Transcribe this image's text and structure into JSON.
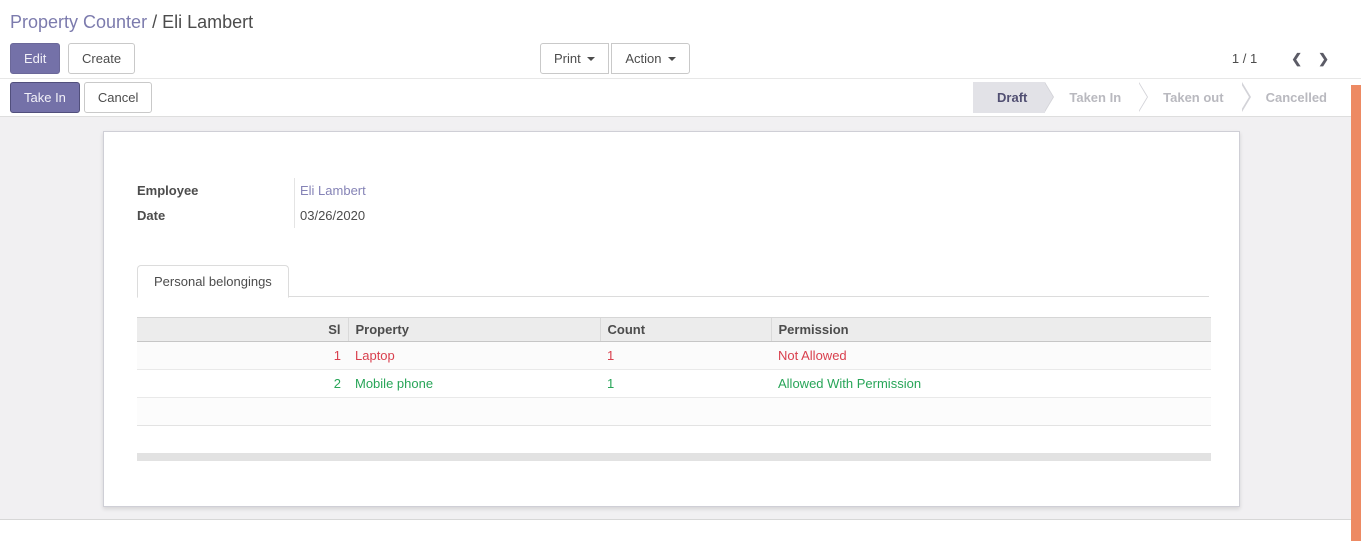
{
  "breadcrumb": {
    "parent": "Property Counter",
    "separator": " / ",
    "current": "Eli Lambert"
  },
  "control_panel": {
    "edit_label": "Edit",
    "create_label": "Create",
    "print_label": "Print",
    "action_label": "Action",
    "pager_text": "1 / 1"
  },
  "icons": {
    "prev": "❮",
    "next": "❯"
  },
  "statusbar": {
    "take_in_label": "Take In",
    "cancel_label": "Cancel",
    "steps": [
      {
        "label": "Draft",
        "active": true
      },
      {
        "label": "Taken In",
        "active": false
      },
      {
        "label": "Taken out",
        "active": false
      },
      {
        "label": "Cancelled",
        "active": false
      }
    ]
  },
  "form": {
    "fields": [
      {
        "label": "Employee",
        "value": "Eli Lambert"
      },
      {
        "label": "Date",
        "value": "03/26/2020"
      }
    ],
    "tab_label": "Personal belongings",
    "table": {
      "columns": {
        "sl": "Sl",
        "property": "Property",
        "count": "Count",
        "permission": "Permission"
      },
      "rows": [
        {
          "sl": "1",
          "property": "Laptop",
          "count": "1",
          "permission": "Not Allowed",
          "status": "danger"
        },
        {
          "sl": "2",
          "property": "Mobile phone",
          "count": "1",
          "permission": "Allowed With Permission",
          "status": "success"
        }
      ]
    }
  },
  "colors": {
    "accent_purple": "#7471a8",
    "link_purple": "#8583b6",
    "danger_red": "#d9404e",
    "success_green": "#28a558",
    "scrollbar_orange": "#ed8a63",
    "active_step_bg": "#e2e2e7"
  }
}
